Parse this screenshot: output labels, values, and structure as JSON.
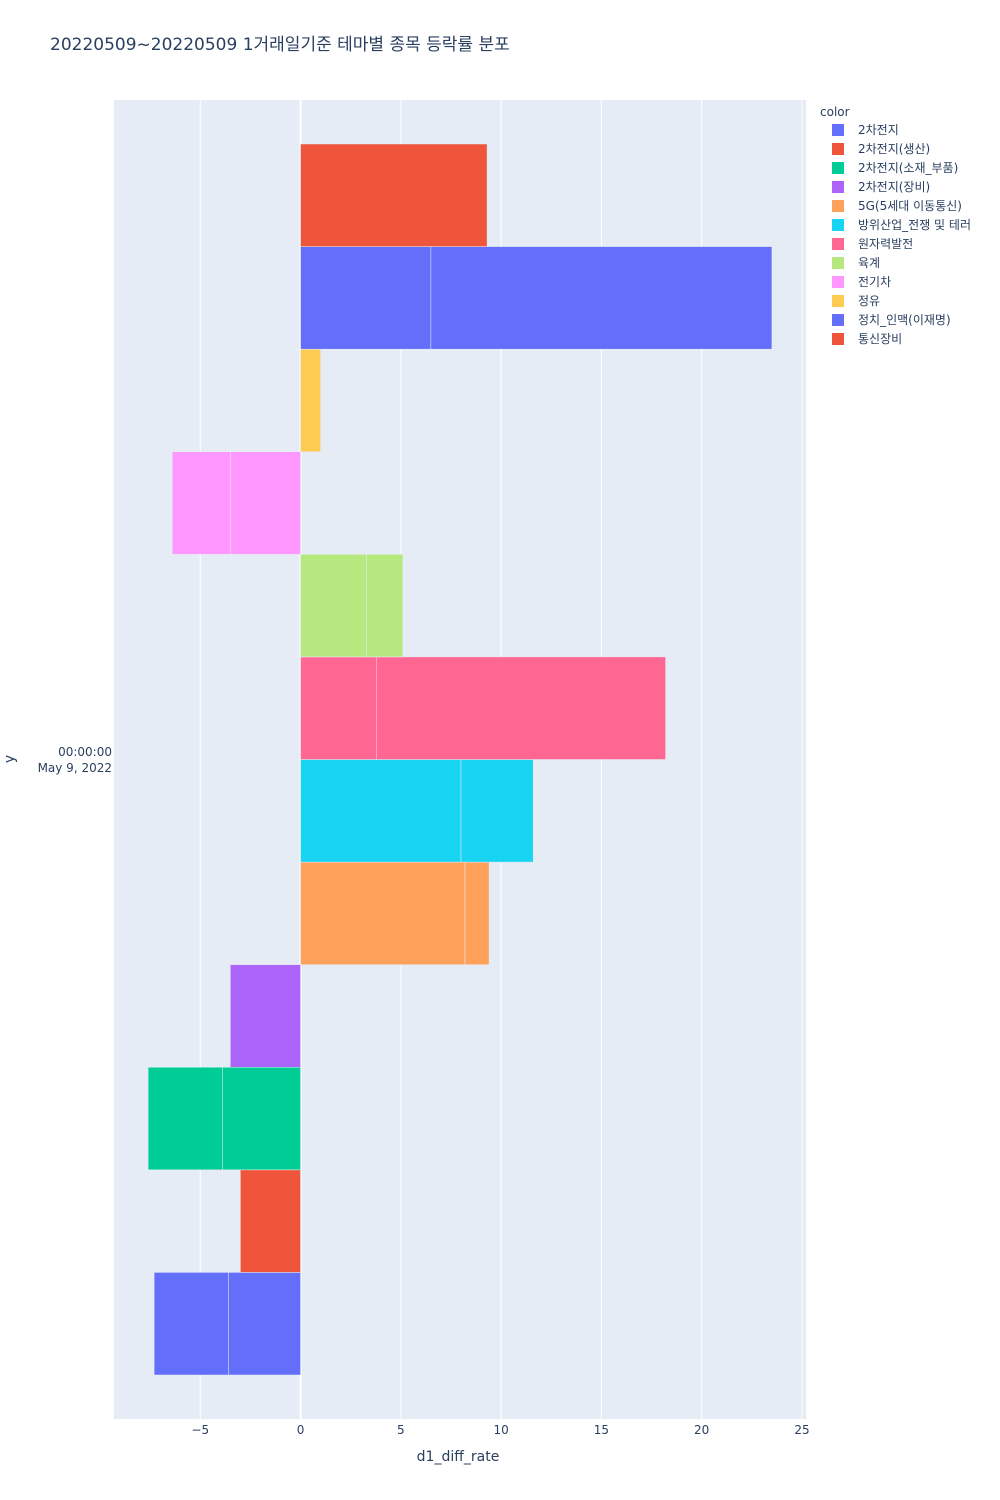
{
  "chart_data": {
    "type": "bar",
    "orientation": "horizontal",
    "barmode": "group-stacked",
    "title": "20220509~20220509 1거래일기준 테마별 종목 등락률 분포",
    "xlabel": "d1_diff_rate",
    "ylabel": "y",
    "xlim": [
      -9.3,
      25.2
    ],
    "xticks": [
      -5,
      0,
      5,
      10,
      15,
      20,
      25
    ],
    "xtick_labels": [
      "−5",
      "0",
      "5",
      "10",
      "15",
      "20",
      "25"
    ],
    "y_category_lines": [
      "00:00:00",
      "May 9, 2022"
    ],
    "legend_title": "color",
    "legend_position": "top-right",
    "series": [
      {
        "name": "2차전지",
        "color": "#636efa",
        "segments": [
          -3.6,
          -3.7
        ]
      },
      {
        "name": "2차전지(생산)",
        "color": "#EF553B",
        "segments": [
          -3.0
        ]
      },
      {
        "name": "2차전지(소재_부품)",
        "color": "#00cc96",
        "segments": [
          -3.9,
          -3.7
        ]
      },
      {
        "name": "2차전지(장비)",
        "color": "#ab63fa",
        "segments": [
          -3.5
        ]
      },
      {
        "name": "5G(5세대 이동통신)",
        "color": "#FFA15A",
        "segments": [
          8.2,
          1.2
        ]
      },
      {
        "name": "방위산업_전쟁 및 테러",
        "color": "#19d3f3",
        "segments": [
          8.0,
          3.6
        ]
      },
      {
        "name": "원자력발전",
        "color": "#FF6692",
        "segments": [
          3.8,
          14.4
        ]
      },
      {
        "name": "육계",
        "color": "#B6E880",
        "segments": [
          3.3,
          1.8
        ]
      },
      {
        "name": "전기차",
        "color": "#FF97FF",
        "segments": [
          -3.5,
          -2.9
        ]
      },
      {
        "name": "정유",
        "color": "#FECB52",
        "segments": [
          1.0
        ]
      },
      {
        "name": "정치_인맥(이재명)",
        "color": "#636efa",
        "segments": [
          6.5,
          17.0
        ]
      },
      {
        "name": "통신장비",
        "color": "#EF553B",
        "segments": [
          9.3
        ]
      }
    ]
  }
}
